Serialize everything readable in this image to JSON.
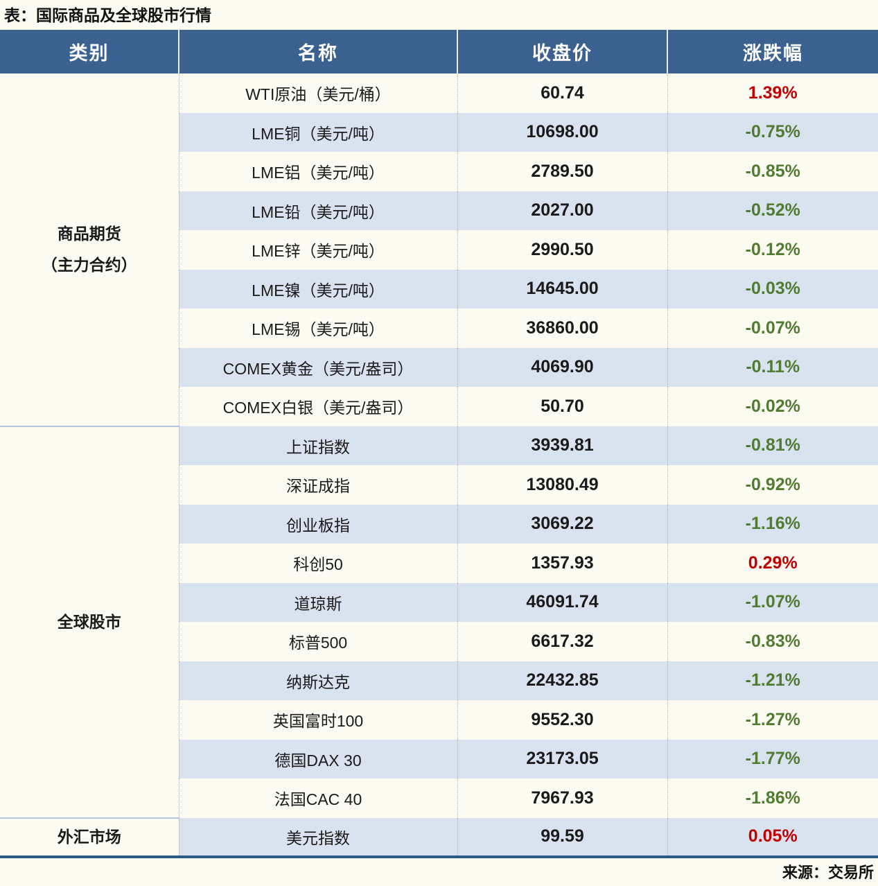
{
  "page": {
    "title": "表：国际商品及全球股市行情",
    "source": "来源：交易所"
  },
  "colors": {
    "header_bg": "#3A618F",
    "stripe_bg": "#D9E2EF",
    "page_bg": "#FCFBF1",
    "up_red": "#C00000",
    "down_green": "#507C31",
    "section_divider": "#B3C6DF",
    "bottom_border": "#2E5984"
  },
  "table": {
    "headers": [
      "类别",
      "名称",
      "收盘价",
      "涨跌幅"
    ],
    "sections": [
      {
        "category": [
          "商品期货",
          "（主力合约）"
        ],
        "rows": [
          {
            "name": "WTI原油（美元/桶）",
            "close": "60.74",
            "change": "1.39%",
            "direction": "up"
          },
          {
            "name": "LME铜（美元/吨）",
            "close": "10698.00",
            "change": "-0.75%",
            "direction": "down"
          },
          {
            "name": "LME铝（美元/吨）",
            "close": "2789.50",
            "change": "-0.85%",
            "direction": "down"
          },
          {
            "name": "LME铅（美元/吨）",
            "close": "2027.00",
            "change": "-0.52%",
            "direction": "down"
          },
          {
            "name": "LME锌（美元/吨）",
            "close": "2990.50",
            "change": "-0.12%",
            "direction": "down"
          },
          {
            "name": "LME镍（美元/吨）",
            "close": "14645.00",
            "change": "-0.03%",
            "direction": "down"
          },
          {
            "name": "LME锡（美元/吨）",
            "close": "36860.00",
            "change": "-0.07%",
            "direction": "down"
          },
          {
            "name": "COMEX黄金（美元/盎司）",
            "close": "4069.90",
            "change": "-0.11%",
            "direction": "down"
          },
          {
            "name": "COMEX白银（美元/盎司）",
            "close": "50.70",
            "change": "-0.02%",
            "direction": "down"
          }
        ]
      },
      {
        "category": [
          "全球股市"
        ],
        "rows": [
          {
            "name": "上证指数",
            "close": "3939.81",
            "change": "-0.81%",
            "direction": "down"
          },
          {
            "name": "深证成指",
            "close": "13080.49",
            "change": "-0.92%",
            "direction": "down"
          },
          {
            "name": "创业板指",
            "close": "3069.22",
            "change": "-1.16%",
            "direction": "down"
          },
          {
            "name": "科创50",
            "close": "1357.93",
            "change": "0.29%",
            "direction": "up"
          },
          {
            "name": "道琼斯",
            "close": "46091.74",
            "change": "-1.07%",
            "direction": "down"
          },
          {
            "name": "标普500",
            "close": "6617.32",
            "change": "-0.83%",
            "direction": "down"
          },
          {
            "name": "纳斯达克",
            "close": "22432.85",
            "change": "-1.21%",
            "direction": "down"
          },
          {
            "name": "英国富时100",
            "close": "9552.30",
            "change": "-1.27%",
            "direction": "down"
          },
          {
            "name": "德国DAX 30",
            "close": "23173.05",
            "change": "-1.77%",
            "direction": "down"
          },
          {
            "name": "法国CAC 40",
            "close": "7967.93",
            "change": "-1.86%",
            "direction": "down"
          }
        ]
      },
      {
        "category": [
          "外汇市场"
        ],
        "rows": [
          {
            "name": "美元指数",
            "close": "99.59",
            "change": "0.05%",
            "direction": "up"
          }
        ]
      }
    ]
  }
}
